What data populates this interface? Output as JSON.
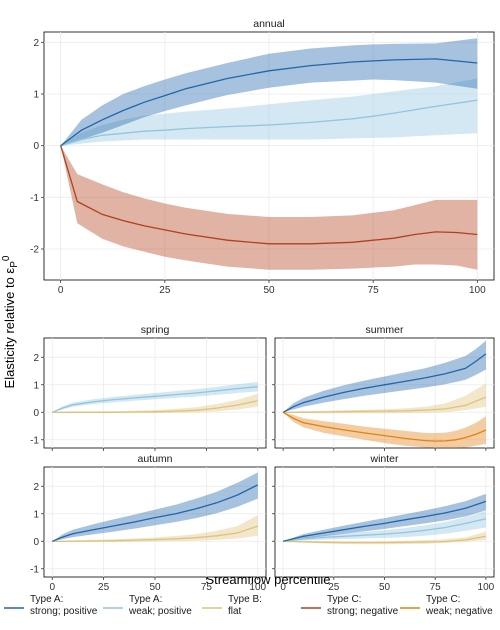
{
  "chart_data": {
    "type": "line",
    "xlabel": "Streamflow percentile",
    "ylabel": "Elasticity relative to ε_P^0",
    "ylabel_main": "Elasticity relative to ε",
    "ylabel_sub": "P",
    "ylabel_sup": "0",
    "grid": true,
    "legend_position": "bottom",
    "legend": [
      {
        "key": "A_strong",
        "line1": "Type A:",
        "line2": "strong; positive",
        "color": "#2166ac"
      },
      {
        "key": "A_weak",
        "line1": "Type A:",
        "line2": "weak; positive",
        "color": "#92c5de"
      },
      {
        "key": "B_flat",
        "line1": "Type B:",
        "line2": "flat",
        "color": "#dfc27d"
      },
      {
        "key": "C_strong",
        "line1": "Type C:",
        "line2": "strong; negative",
        "color": "#b2401b"
      },
      {
        "key": "C_weak",
        "line1": "Type C:",
        "line2": "weak; negative",
        "color": "#e08214"
      }
    ],
    "panels": [
      {
        "id": "annual",
        "title": "annual",
        "xlim": [
          -4,
          104
        ],
        "ylim": [
          -2.6,
          2.2
        ],
        "xticks": [
          0,
          25,
          50,
          75,
          100
        ],
        "yticks": [
          -2,
          -1,
          0,
          1,
          2
        ],
        "series": [
          {
            "key": "A_weak",
            "x": [
              0,
              5,
              10,
              15,
              20,
              25,
              30,
              40,
              50,
              60,
              70,
              75,
              80,
              90,
              100
            ],
            "y": [
              0,
              0.12,
              0.2,
              0.24,
              0.28,
              0.3,
              0.33,
              0.37,
              0.4,
              0.45,
              0.52,
              0.57,
              0.63,
              0.76,
              0.88
            ],
            "lower": [
              0,
              0.04,
              0.08,
              0.1,
              0.12,
              0.12,
              0.12,
              0.12,
              0.12,
              0.12,
              0.14,
              0.15,
              0.16,
              0.2,
              0.24
            ],
            "upper": [
              0,
              0.25,
              0.4,
              0.5,
              0.58,
              0.62,
              0.66,
              0.72,
              0.8,
              0.88,
              0.95,
              1.0,
              1.05,
              1.15,
              1.3
            ]
          },
          {
            "key": "A_strong",
            "x": [
              0,
              5,
              10,
              15,
              20,
              25,
              30,
              40,
              50,
              60,
              70,
              75,
              80,
              90,
              100
            ],
            "y": [
              0,
              0.3,
              0.5,
              0.68,
              0.84,
              0.97,
              1.1,
              1.3,
              1.45,
              1.55,
              1.62,
              1.64,
              1.66,
              1.68,
              1.6
            ],
            "lower": [
              0,
              0.12,
              0.25,
              0.4,
              0.55,
              0.67,
              0.78,
              0.98,
              1.12,
              1.22,
              1.26,
              1.28,
              1.27,
              1.22,
              1.1
            ],
            "upper": [
              0,
              0.5,
              0.78,
              1.0,
              1.15,
              1.28,
              1.4,
              1.6,
              1.78,
              1.88,
              1.94,
              1.96,
              1.97,
              1.98,
              2.08
            ]
          },
          {
            "key": "C_strong",
            "x": [
              0,
              4,
              10,
              15,
              20,
              25,
              30,
              40,
              50,
              60,
              70,
              75,
              80,
              85,
              90,
              95,
              100
            ],
            "y": [
              0,
              -1.08,
              -1.33,
              -1.45,
              -1.55,
              -1.63,
              -1.71,
              -1.83,
              -1.9,
              -1.9,
              -1.87,
              -1.83,
              -1.79,
              -1.72,
              -1.67,
              -1.68,
              -1.72
            ],
            "lower": [
              0,
              -1.5,
              -1.8,
              -1.95,
              -2.05,
              -2.15,
              -2.22,
              -2.34,
              -2.4,
              -2.4,
              -2.38,
              -2.36,
              -2.34,
              -2.3,
              -2.3,
              -2.32,
              -2.4
            ],
            "upper": [
              0,
              -0.55,
              -0.75,
              -0.9,
              -1.02,
              -1.12,
              -1.2,
              -1.32,
              -1.38,
              -1.38,
              -1.35,
              -1.3,
              -1.25,
              -1.15,
              -1.05,
              -1.05,
              -1.05
            ]
          }
        ]
      },
      {
        "id": "spring",
        "title": "spring",
        "xlim": [
          -4,
          104
        ],
        "ylim": [
          -1.3,
          2.7
        ],
        "xticks": [
          0,
          25,
          50,
          75,
          100
        ],
        "yticks": [
          -1,
          0,
          1,
          2
        ],
        "series": [
          {
            "key": "A_weak",
            "x": [
              0,
              5,
              10,
              20,
              30,
              40,
              50,
              60,
              70,
              80,
              90,
              100
            ],
            "y": [
              0,
              0.15,
              0.27,
              0.38,
              0.46,
              0.52,
              0.58,
              0.64,
              0.7,
              0.78,
              0.86,
              0.93
            ],
            "lower": [
              0,
              0.1,
              0.2,
              0.3,
              0.36,
              0.42,
              0.47,
              0.52,
              0.57,
              0.63,
              0.7,
              0.76
            ],
            "upper": [
              0,
              0.22,
              0.35,
              0.47,
              0.56,
              0.63,
              0.7,
              0.77,
              0.84,
              0.92,
              1.02,
              1.1
            ]
          },
          {
            "key": "B_flat",
            "x": [
              0,
              10,
              20,
              30,
              40,
              50,
              60,
              70,
              80,
              90,
              100
            ],
            "y": [
              0,
              0.0,
              0.0,
              0.0,
              0.01,
              0.02,
              0.04,
              0.07,
              0.15,
              0.26,
              0.42
            ],
            "lower": [
              0,
              -0.02,
              -0.03,
              -0.03,
              -0.03,
              -0.03,
              -0.02,
              -0.01,
              0.03,
              0.1,
              0.2
            ],
            "upper": [
              0,
              0.03,
              0.03,
              0.04,
              0.06,
              0.08,
              0.12,
              0.18,
              0.3,
              0.45,
              0.68
            ]
          }
        ]
      },
      {
        "id": "summer",
        "title": "summer",
        "xlim": [
          -4,
          104
        ],
        "ylim": [
          -1.3,
          2.7
        ],
        "xticks": [
          0,
          25,
          50,
          75,
          100
        ],
        "yticks": [
          -1,
          0,
          1,
          2
        ],
        "series": [
          {
            "key": "B_flat",
            "x": [
              0,
              10,
              20,
              30,
              40,
              50,
              60,
              70,
              80,
              90,
              100
            ],
            "y": [
              0,
              0.0,
              0.01,
              0.02,
              0.03,
              0.04,
              0.05,
              0.08,
              0.12,
              0.25,
              0.55
            ],
            "lower": [
              0,
              -0.03,
              -0.04,
              -0.04,
              -0.04,
              -0.04,
              -0.03,
              -0.02,
              0.0,
              0.08,
              0.2
            ],
            "upper": [
              0,
              0.04,
              0.05,
              0.07,
              0.09,
              0.11,
              0.14,
              0.2,
              0.32,
              0.6,
              1.05
            ]
          },
          {
            "key": "A_strong",
            "x": [
              0,
              5,
              10,
              20,
              30,
              40,
              50,
              60,
              70,
              80,
              90,
              95,
              100
            ],
            "y": [
              0,
              0.2,
              0.35,
              0.55,
              0.72,
              0.87,
              1.0,
              1.12,
              1.25,
              1.4,
              1.6,
              1.85,
              2.12
            ],
            "lower": [
              0,
              0.1,
              0.2,
              0.35,
              0.48,
              0.6,
              0.7,
              0.8,
              0.9,
              1.02,
              1.18,
              1.36,
              1.55
            ],
            "upper": [
              0,
              0.32,
              0.52,
              0.78,
              0.98,
              1.15,
              1.3,
              1.45,
              1.6,
              1.8,
              2.05,
              2.3,
              2.6
            ]
          },
          {
            "key": "C_weak",
            "x": [
              0,
              5,
              10,
              20,
              30,
              40,
              50,
              60,
              70,
              75,
              80,
              85,
              90,
              95,
              100
            ],
            "y": [
              0,
              -0.22,
              -0.38,
              -0.52,
              -0.64,
              -0.75,
              -0.85,
              -0.95,
              -1.03,
              -1.05,
              -1.04,
              -1.0,
              -0.92,
              -0.8,
              -0.65
            ],
            "lower": [
              0,
              -0.35,
              -0.55,
              -0.75,
              -0.88,
              -1.0,
              -1.12,
              -1.22,
              -1.28,
              -1.3,
              -1.3,
              -1.3,
              -1.28,
              -1.22,
              -1.15
            ],
            "upper": [
              0,
              -0.1,
              -0.22,
              -0.32,
              -0.42,
              -0.52,
              -0.6,
              -0.68,
              -0.75,
              -0.76,
              -0.74,
              -0.68,
              -0.56,
              -0.38,
              -0.15
            ]
          }
        ]
      },
      {
        "id": "autumn",
        "title": "autumn",
        "xlim": [
          -4,
          104
        ],
        "ylim": [
          -1.3,
          2.7
        ],
        "xticks": [
          0,
          25,
          50,
          75,
          100
        ],
        "yticks": [
          -1,
          0,
          1,
          2
        ],
        "series": [
          {
            "key": "B_flat",
            "x": [
              0,
              10,
              20,
              30,
              40,
              50,
              60,
              70,
              80,
              90,
              100
            ],
            "y": [
              0,
              0.0,
              0.01,
              0.02,
              0.04,
              0.06,
              0.09,
              0.13,
              0.2,
              0.3,
              0.55
            ],
            "lower": [
              0,
              -0.02,
              -0.03,
              -0.03,
              -0.02,
              -0.01,
              0.0,
              0.02,
              0.05,
              0.1,
              0.2
            ],
            "upper": [
              0,
              0.03,
              0.05,
              0.07,
              0.1,
              0.14,
              0.19,
              0.26,
              0.38,
              0.55,
              0.95
            ]
          },
          {
            "key": "A_strong",
            "x": [
              0,
              5,
              10,
              20,
              30,
              40,
              50,
              60,
              70,
              80,
              90,
              100
            ],
            "y": [
              0,
              0.15,
              0.27,
              0.42,
              0.56,
              0.7,
              0.86,
              1.0,
              1.18,
              1.4,
              1.68,
              2.05
            ],
            "lower": [
              0,
              0.07,
              0.15,
              0.25,
              0.35,
              0.46,
              0.58,
              0.7,
              0.84,
              1.02,
              1.25,
              1.55
            ],
            "upper": [
              0,
              0.25,
              0.42,
              0.62,
              0.8,
              0.97,
              1.15,
              1.33,
              1.55,
              1.8,
              2.12,
              2.5
            ]
          }
        ]
      },
      {
        "id": "winter",
        "title": "winter",
        "xlim": [
          -4,
          104
        ],
        "ylim": [
          -1.3,
          2.7
        ],
        "xticks": [
          0,
          25,
          50,
          75,
          100
        ],
        "yticks": [
          -1,
          0,
          1,
          2
        ],
        "series": [
          {
            "key": "A_weak",
            "x": [
              0,
              10,
              20,
              30,
              40,
              50,
              60,
              70,
              80,
              90,
              100
            ],
            "y": [
              0,
              0.08,
              0.14,
              0.18,
              0.22,
              0.26,
              0.32,
              0.4,
              0.5,
              0.65,
              0.82
            ],
            "lower": [
              0,
              0.03,
              0.06,
              0.08,
              0.1,
              0.12,
              0.15,
              0.2,
              0.27,
              0.38,
              0.5
            ],
            "upper": [
              0,
              0.14,
              0.22,
              0.28,
              0.34,
              0.4,
              0.48,
              0.58,
              0.7,
              0.88,
              1.1
            ]
          },
          {
            "key": "B_flat",
            "x": [
              0,
              10,
              20,
              30,
              40,
              50,
              60,
              70,
              80,
              90,
              100
            ],
            "y": [
              0,
              -0.02,
              -0.04,
              -0.05,
              -0.05,
              -0.05,
              -0.04,
              -0.03,
              -0.01,
              0.05,
              0.18
            ],
            "lower": [
              0,
              -0.05,
              -0.08,
              -0.1,
              -0.11,
              -0.11,
              -0.1,
              -0.09,
              -0.06,
              -0.02,
              0.05
            ],
            "upper": [
              0,
              0.02,
              0.01,
              0.0,
              0.0,
              0.0,
              0.02,
              0.04,
              0.07,
              0.14,
              0.35
            ]
          },
          {
            "key": "A_strong",
            "x": [
              0,
              10,
              20,
              30,
              40,
              50,
              60,
              70,
              80,
              90,
              100
            ],
            "y": [
              0,
              0.18,
              0.3,
              0.42,
              0.54,
              0.65,
              0.78,
              0.9,
              1.03,
              1.2,
              1.45
            ],
            "lower": [
              0,
              0.1,
              0.18,
              0.27,
              0.36,
              0.45,
              0.55,
              0.65,
              0.76,
              0.9,
              1.12
            ],
            "upper": [
              0,
              0.26,
              0.42,
              0.57,
              0.71,
              0.84,
              0.98,
              1.12,
              1.28,
              1.46,
              1.72
            ]
          }
        ]
      }
    ]
  }
}
